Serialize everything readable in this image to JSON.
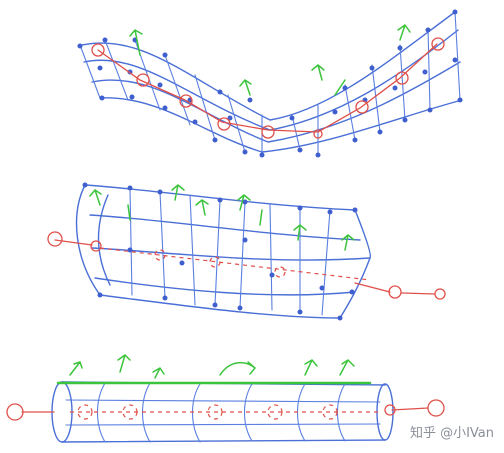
{
  "watermark": "知乎 @小IVan",
  "colors": {
    "mesh": "#4a6fd6",
    "bones": "#e0504a",
    "normals": "#3cc43c"
  }
}
